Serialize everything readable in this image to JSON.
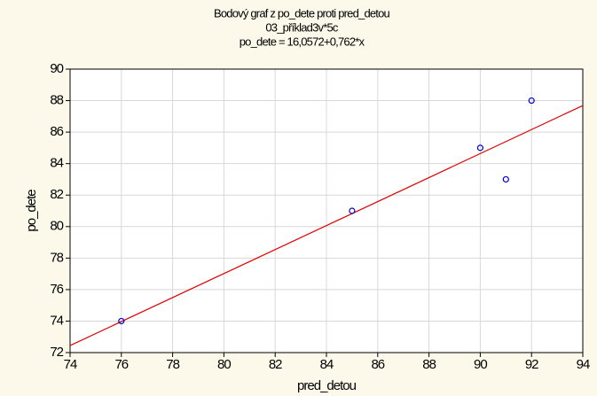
{
  "chart_data": {
    "type": "scatter",
    "title": [
      "Bodový graf z po_dete proti pred_detou",
      "03_příklad3v*5c",
      "po_dete = 16,0572+0,762*x"
    ],
    "xlabel": "pred_detou",
    "ylabel": "po_dete",
    "series": [
      {
        "name": "po_dete",
        "color": "#0000cc",
        "x": [
          76,
          85,
          90,
          91,
          92
        ],
        "values": [
          74,
          81,
          85,
          83,
          88
        ]
      }
    ],
    "fit": {
      "intercept": 16.0572,
      "slope": 0.762,
      "color": "#e00000"
    },
    "xlim": [
      74,
      94
    ],
    "xticks": [
      74,
      76,
      78,
      80,
      82,
      84,
      86,
      88,
      90,
      92,
      94
    ],
    "ylim": [
      72,
      90
    ],
    "yticks": [
      72,
      74,
      76,
      78,
      80,
      82,
      84,
      86,
      88,
      90
    ],
    "grid": true
  }
}
